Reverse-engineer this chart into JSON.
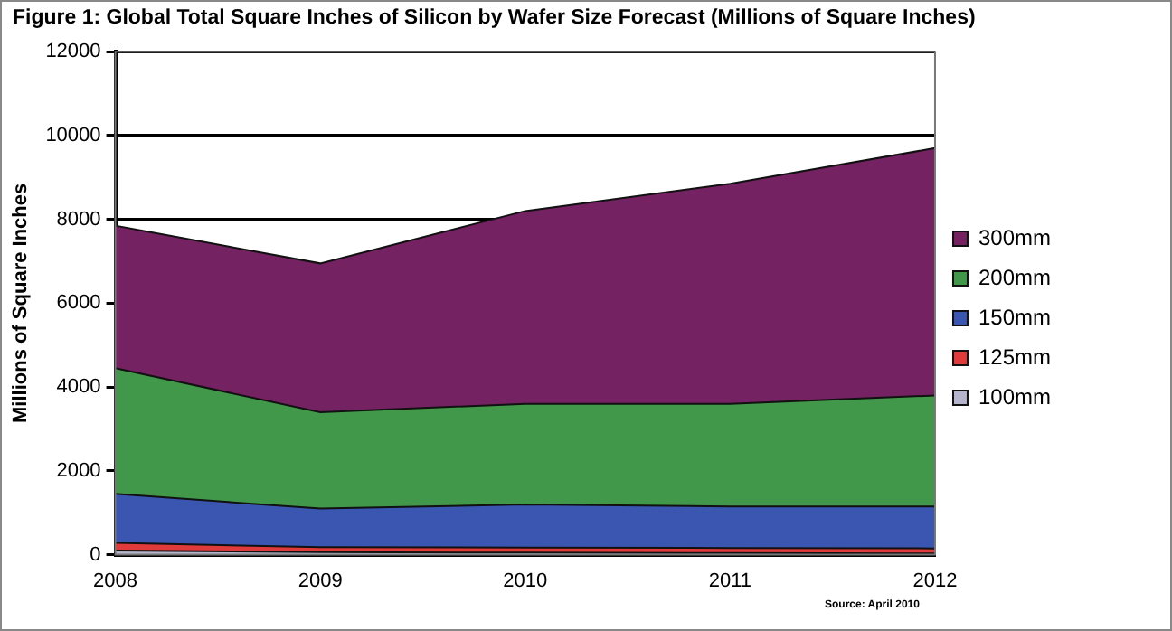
{
  "chart_data": {
    "type": "area",
    "title": "Figure 1: Global Total Square Inches of Silicon by Wafer Size Forecast (Millions of Square Inches)",
    "ylabel": "Millions of Square Inches",
    "categories": [
      "2008",
      "2009",
      "2010",
      "2011",
      "2012"
    ],
    "stacked": true,
    "series": [
      {
        "name": "100mm",
        "color": "#b4b4cc",
        "values": [
          100,
          60,
          50,
          40,
          30
        ]
      },
      {
        "name": "125mm",
        "color": "#e03a3a",
        "values": [
          180,
          120,
          120,
          120,
          120
        ]
      },
      {
        "name": "150mm",
        "color": "#3a56b0",
        "values": [
          1170,
          920,
          1030,
          990,
          1000
        ]
      },
      {
        "name": "200mm",
        "color": "#42984a",
        "values": [
          3000,
          2300,
          2400,
          2450,
          2650
        ]
      },
      {
        "name": "300mm",
        "color": "#742262",
        "values": [
          3400,
          3550,
          4600,
          5250,
          5900
        ]
      }
    ],
    "ylim": [
      0,
      12000
    ],
    "yticks": [
      0,
      2000,
      4000,
      6000,
      8000,
      10000,
      12000
    ],
    "grid": "y",
    "legend": "right",
    "annotations": [
      "Source: April 2010"
    ]
  }
}
